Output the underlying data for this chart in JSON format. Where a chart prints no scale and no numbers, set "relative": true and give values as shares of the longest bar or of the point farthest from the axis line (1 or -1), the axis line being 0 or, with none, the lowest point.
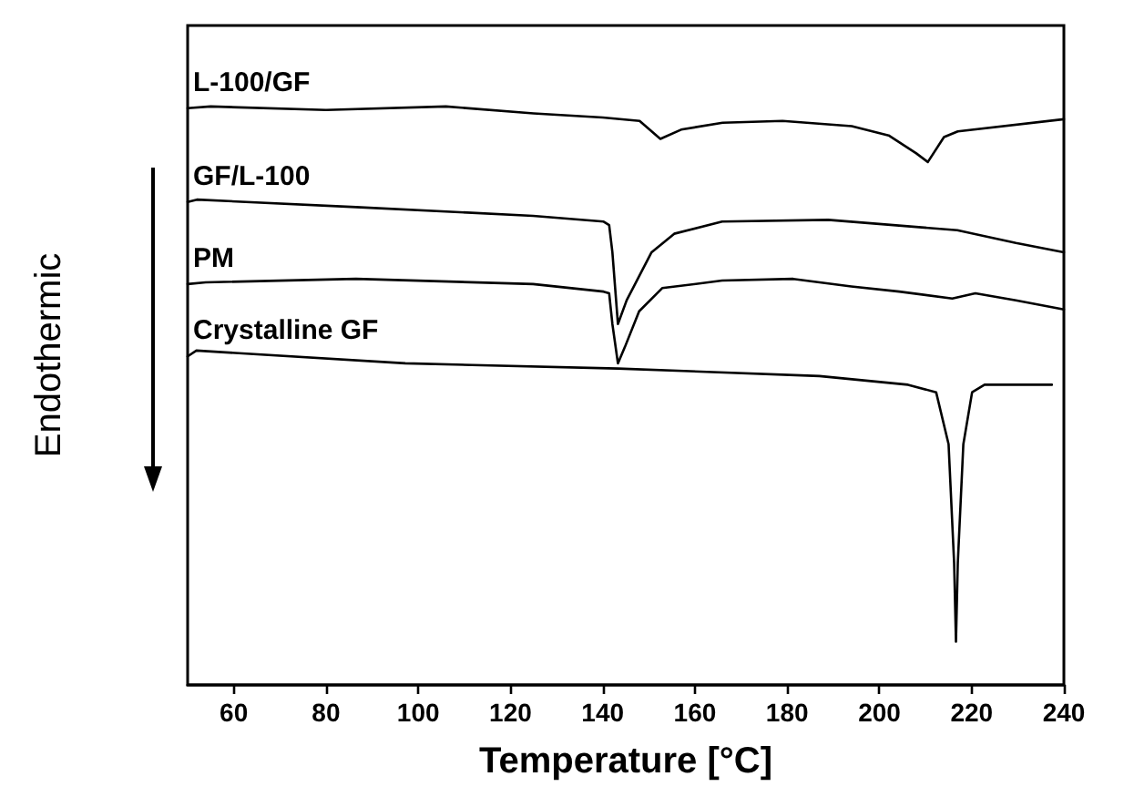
{
  "chart_data": {
    "type": "line",
    "relative": true,
    "xlabel": "Temperature [°C]",
    "ylabel": "Endothermic",
    "xlim": [
      50,
      240
    ],
    "xticks": [
      60,
      80,
      100,
      120,
      140,
      160,
      180,
      200,
      220,
      240
    ],
    "grid": false,
    "legend": false,
    "marker": "none",
    "line_style": "solid",
    "series": [
      {
        "name": "L-100/GF",
        "color": "#000000",
        "x": [
          50,
          55,
          80,
          106,
          125,
          140,
          148,
          152.5,
          157,
          166,
          179,
          194,
          202,
          208,
          210.5,
          214,
          217,
          240
        ],
        "values": [
          0.997,
          1,
          0.994,
          1,
          0.988,
          0.981,
          0.975,
          0.944,
          0.96,
          0.972,
          0.975,
          0.966,
          0.95,
          0.919,
          0.904,
          0.947,
          0.957,
          0.978
        ]
      },
      {
        "name": "GF/L-100",
        "color": "#000000",
        "x": [
          50,
          52,
          86.5,
          124.9,
          140.2,
          141.4,
          142.1,
          143.3,
          145.2,
          150.6,
          155.5,
          165.9,
          188.9,
          216.9,
          229.6,
          240
        ],
        "values": [
          0.835,
          0.839,
          0.826,
          0.811,
          0.801,
          0.795,
          0.748,
          0.624,
          0.665,
          0.748,
          0.78,
          0.801,
          0.804,
          0.786,
          0.764,
          0.748
        ]
      },
      {
        "name": "PM",
        "color": "#000000",
        "x": [
          50,
          53.9,
          86.5,
          124.9,
          140.2,
          141.4,
          142.1,
          143.3,
          144.8,
          147.9,
          152.9,
          165.9,
          181.3,
          193.9,
          204.3,
          215.8,
          220.8,
          229.6,
          240
        ],
        "values": [
          0.693,
          0.696,
          0.702,
          0.693,
          0.68,
          0.677,
          0.624,
          0.556,
          0.584,
          0.646,
          0.686,
          0.699,
          0.702,
          0.689,
          0.68,
          0.668,
          0.677,
          0.665,
          0.649
        ]
      },
      {
        "name": "Crystalline GF",
        "color": "#000000",
        "x": [
          50,
          51.9,
          97.2,
          143.3,
          187,
          206.2,
          212.3,
          215,
          216.2,
          216.6,
          217,
          218.2,
          220.1,
          222.8,
          237.4
        ],
        "values": [
          0.568,
          0.578,
          0.556,
          0.547,
          0.534,
          0.519,
          0.506,
          0.416,
          0.211,
          0.075,
          0.211,
          0.416,
          0.506,
          0.519,
          0.519
        ]
      }
    ]
  }
}
